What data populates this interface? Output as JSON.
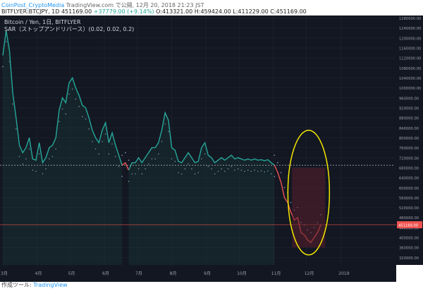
{
  "header": {
    "publisher": "CoinPost_CryptoMedia",
    "published_text": " TradingView.com で公開, 12月 20, 2018 21:23 JST",
    "symbol": "BITFLYER:BTCJPY, 1D",
    "price": "451169.00",
    "change": "+37779.00 (+9.14%)",
    "ohlc": "O:413321.00 H:459424.00 L:411229.00 C:451169.00"
  },
  "footer": {
    "label": "作成ツール: ",
    "brand": "TradingView"
  },
  "chart_data": {
    "type": "line",
    "title": "Bitcoin / Yen, 1日, BITFLYER",
    "indicator": "SAR（ストップアンドリバース）(0.02, 0.02, 0.2)",
    "ylim": [
      290000,
      1290000
    ],
    "y_ticks": [
      1280000,
      1240000,
      1200000,
      1160000,
      1120000,
      1080000,
      1040000,
      1000000,
      960000,
      920000,
      880000,
      840000,
      800000,
      760000,
      720000,
      680000,
      640000,
      600000,
      560000,
      520000,
      480000,
      440000,
      400000,
      360000,
      320000
    ],
    "y_tick_labels": [
      "1280000.00",
      "1240000.00",
      "1200000.00",
      "1160000.00",
      "1120000.00",
      "1080000.00",
      "1040000.00",
      "1000000.00",
      "960000.00",
      "920000.00",
      "880000.00",
      "840000.00",
      "800000.00",
      "760000.00",
      "720000.00",
      "680000.00",
      "640000.00",
      "600000.00",
      "560000.00",
      "520000.00",
      "480000.00",
      "440000.00",
      "400000.00",
      "360000.00",
      "320000.00"
    ],
    "x_range": [
      0,
      355
    ],
    "x_ticks": [
      {
        "label": "3月",
        "x": 0
      },
      {
        "label": "4月",
        "x": 31
      },
      {
        "label": "5月",
        "x": 61
      },
      {
        "label": "6月",
        "x": 92
      },
      {
        "label": "7月",
        "x": 122
      },
      {
        "label": "8月",
        "x": 153
      },
      {
        "label": "9月",
        "x": 184
      },
      {
        "label": "10月",
        "x": 214
      },
      {
        "label": "11月",
        "x": 245
      },
      {
        "label": "12月",
        "x": 275
      },
      {
        "label": "2019",
        "x": 306
      }
    ],
    "series": [
      {
        "color": "#26a69a",
        "points": [
          [
            0,
            1130000
          ],
          [
            3,
            1230000
          ],
          [
            6,
            1150000
          ],
          [
            9,
            980000
          ],
          [
            12,
            880000
          ],
          [
            15,
            770000
          ],
          [
            18,
            740000
          ],
          [
            21,
            760000
          ],
          [
            24,
            800000
          ],
          [
            27,
            715000
          ],
          [
            30,
            710000
          ],
          [
            33,
            780000
          ],
          [
            36,
            700000
          ],
          [
            39,
            720000
          ],
          [
            42,
            760000
          ],
          [
            45,
            770000
          ],
          [
            48,
            800000
          ],
          [
            51,
            910000
          ],
          [
            54,
            960000
          ],
          [
            57,
            940000
          ],
          [
            60,
            1020000
          ],
          [
            63,
            1040000
          ],
          [
            66,
            1000000
          ],
          [
            69,
            970000
          ],
          [
            72,
            930000
          ],
          [
            75,
            920000
          ],
          [
            78,
            880000
          ],
          [
            81,
            830000
          ],
          [
            84,
            800000
          ],
          [
            87,
            780000
          ],
          [
            90,
            830000
          ],
          [
            93,
            860000
          ],
          [
            96,
            780000
          ],
          [
            99,
            820000
          ],
          [
            102,
            770000
          ],
          [
            105,
            730000
          ],
          [
            108,
            690000
          ]
        ]
      },
      {
        "color": "#ef5350",
        "points": [
          [
            108,
            690000
          ],
          [
            111,
            700000
          ],
          [
            114,
            670000
          ]
        ]
      },
      {
        "color": "#26a69a",
        "points": [
          [
            114,
            670000
          ],
          [
            117,
            700000
          ],
          [
            120,
            700000
          ],
          [
            123,
            720000
          ],
          [
            126,
            700000
          ],
          [
            129,
            720000
          ],
          [
            132,
            740000
          ],
          [
            135,
            760000
          ],
          [
            138,
            760000
          ],
          [
            141,
            780000
          ],
          [
            144,
            830000
          ],
          [
            147,
            900000
          ],
          [
            150,
            870000
          ],
          [
            153,
            760000
          ],
          [
            156,
            750000
          ],
          [
            159,
            705000
          ],
          [
            162,
            700000
          ],
          [
            165,
            720000
          ],
          [
            168,
            740000
          ],
          [
            171,
            720000
          ],
          [
            174,
            700000
          ],
          [
            177,
            705000
          ],
          [
            180,
            760000
          ],
          [
            183,
            780000
          ],
          [
            186,
            730000
          ],
          [
            189,
            720000
          ],
          [
            192,
            700000
          ],
          [
            195,
            710000
          ],
          [
            198,
            720000
          ],
          [
            201,
            710000
          ],
          [
            204,
            720000
          ],
          [
            207,
            730000
          ],
          [
            210,
            715000
          ],
          [
            213,
            720000
          ],
          [
            216,
            715000
          ],
          [
            219,
            710000
          ],
          [
            222,
            715000
          ],
          [
            225,
            710000
          ],
          [
            228,
            715000
          ],
          [
            231,
            710000
          ],
          [
            234,
            712000
          ],
          [
            237,
            708000
          ],
          [
            240,
            712000
          ],
          [
            243,
            700000
          ],
          [
            246,
            690000
          ]
        ]
      },
      {
        "color": "#ef5350",
        "points": [
          [
            246,
            690000
          ],
          [
            249,
            660000
          ],
          [
            252,
            620000
          ],
          [
            255,
            560000
          ],
          [
            258,
            540000
          ],
          [
            261,
            500000
          ],
          [
            264,
            470000
          ],
          [
            267,
            480000
          ],
          [
            270,
            420000
          ],
          [
            273,
            410000
          ],
          [
            276,
            390000
          ],
          [
            279,
            380000
          ],
          [
            282,
            400000
          ],
          [
            285,
            420000
          ],
          [
            288,
            451169
          ]
        ]
      }
    ],
    "last_price": 451169,
    "last_price_label": "451169.00",
    "accent_up": "#26a69a",
    "accent_down": "#ef5350",
    "annotation": "yellow ellipse highlighting the December decline"
  }
}
